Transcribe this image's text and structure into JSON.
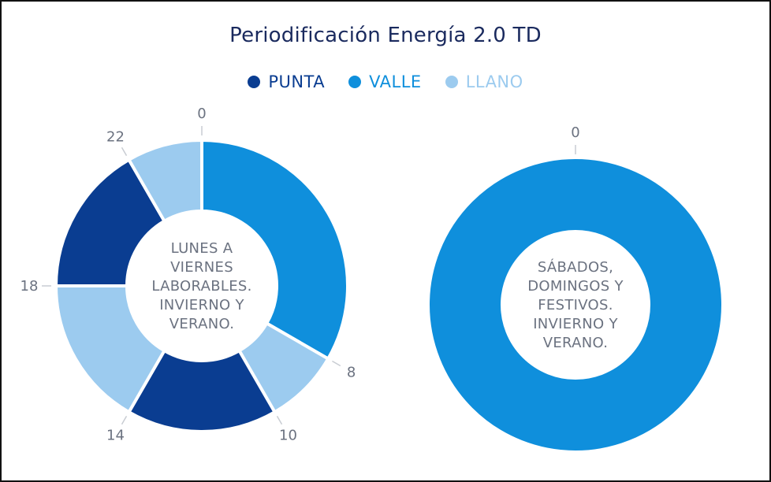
{
  "chart_data": {
    "type": "pie",
    "title": "Periodificación Energía 2.0 TD",
    "legend": {
      "placement": "top-center",
      "items": [
        {
          "label": "PUNTA",
          "color": "#0a3d91"
        },
        {
          "label": "VALLE",
          "color": "#0f8fdc"
        },
        {
          "label": "LLANO",
          "color": "#9ccbef"
        }
      ]
    },
    "donuts": [
      {
        "center_text": [
          "LUNES A",
          "VIERNES",
          "LABORABLES.",
          "INVIERNO Y",
          "VERANO."
        ],
        "segments": [
          {
            "start": 0,
            "end": 8,
            "series": "VALLE"
          },
          {
            "start": 8,
            "end": 10,
            "series": "LLANO"
          },
          {
            "start": 10,
            "end": 14,
            "series": "PUNTA"
          },
          {
            "start": 14,
            "end": 18,
            "series": "LLANO"
          },
          {
            "start": 18,
            "end": 22,
            "series": "PUNTA"
          },
          {
            "start": 22,
            "end": 24,
            "series": "LLANO"
          }
        ],
        "boundary_labels": [
          "0",
          "8",
          "10",
          "14",
          "18",
          "22"
        ]
      },
      {
        "center_text": [
          "SÁBADOS,",
          "DOMINGOS Y",
          "FESTIVOS.",
          "INVIERNO Y",
          "VERANO."
        ],
        "segments": [
          {
            "start": 0,
            "end": 24,
            "series": "VALLE"
          }
        ],
        "boundary_labels": [
          "0"
        ]
      }
    ]
  }
}
